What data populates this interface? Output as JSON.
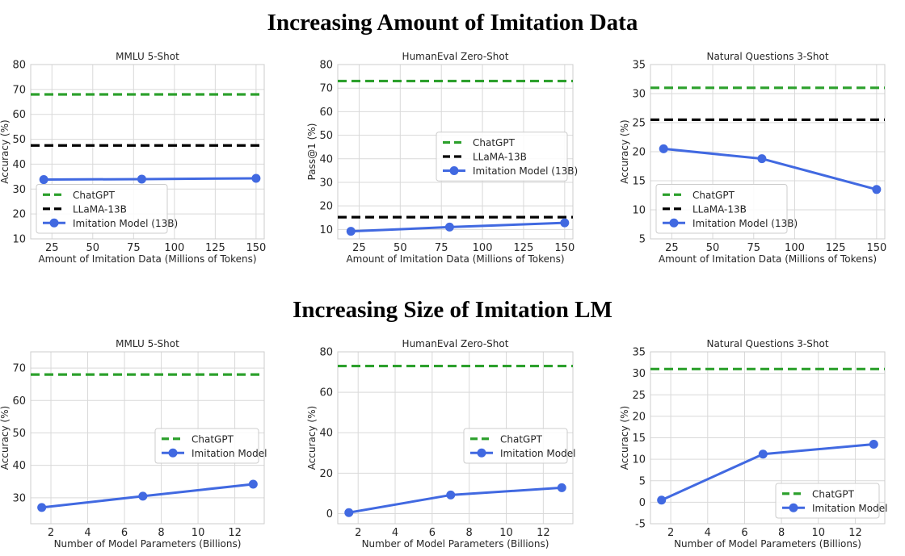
{
  "figure": {
    "row_titles": [
      "Increasing Amount of Imitation Data",
      "Increasing Size of Imitation LM"
    ]
  },
  "colors": {
    "chatgpt": "#2ca02c",
    "llama": "#000000",
    "imitation": "#4169e1",
    "grid": "#d9d9d9",
    "axes": "#cccccc"
  },
  "chart_data": [
    {
      "type": "line",
      "title": "MMLU 5-Shot",
      "xlabel": "Amount of Imitation Data (Millions of Tokens)",
      "ylabel": "Accuracy (%)",
      "xlim": [
        12,
        155
      ],
      "ylim": [
        10,
        80
      ],
      "xticks": [
        25,
        50,
        75,
        100,
        125,
        150
      ],
      "yticks": [
        10,
        20,
        30,
        40,
        50,
        60,
        70,
        80
      ],
      "hlines": [
        {
          "name": "ChatGPT",
          "y": 68,
          "color": "#2ca02c"
        },
        {
          "name": "LLaMA-13B",
          "y": 47.5,
          "color": "#000000"
        }
      ],
      "series": [
        {
          "name": "Imitation Model (13B)",
          "x": [
            20,
            80,
            150
          ],
          "y": [
            33.8,
            34.0,
            34.3
          ],
          "color": "#4169e1"
        }
      ],
      "legend": "lower-left"
    },
    {
      "type": "line",
      "title": "HumanEval Zero-Shot",
      "xlabel": "Amount of Imitation Data (Millions of Tokens)",
      "ylabel": "Pass@1 (%)",
      "xlim": [
        12,
        155
      ],
      "ylim": [
        6,
        80
      ],
      "xticks": [
        25,
        50,
        75,
        100,
        125,
        150
      ],
      "yticks": [
        10,
        20,
        30,
        40,
        50,
        60,
        70,
        80
      ],
      "hlines": [
        {
          "name": "ChatGPT",
          "y": 73,
          "color": "#2ca02c"
        },
        {
          "name": "LLaMA-13B",
          "y": 15.2,
          "color": "#000000"
        }
      ],
      "series": [
        {
          "name": "Imitation Model (13B)",
          "x": [
            20,
            80,
            150
          ],
          "y": [
            9.2,
            11.0,
            12.8
          ],
          "color": "#4169e1"
        }
      ],
      "legend": "center-right"
    },
    {
      "type": "line",
      "title": "Natural Questions 3-Shot",
      "xlabel": "Amount of Imitation Data (Millions of Tokens)",
      "ylabel": "Accuracy (%)",
      "xlim": [
        12,
        155
      ],
      "ylim": [
        5,
        35
      ],
      "xticks": [
        25,
        50,
        75,
        100,
        125,
        150
      ],
      "yticks": [
        5,
        10,
        15,
        20,
        25,
        30,
        35
      ],
      "hlines": [
        {
          "name": "ChatGPT",
          "y": 31,
          "color": "#2ca02c"
        },
        {
          "name": "LLaMA-13B",
          "y": 25.5,
          "color": "#000000"
        }
      ],
      "series": [
        {
          "name": "Imitation Model (13B)",
          "x": [
            20,
            80,
            150
          ],
          "y": [
            20.5,
            18.8,
            13.5
          ],
          "color": "#4169e1"
        }
      ],
      "legend": "lower-left"
    },
    {
      "type": "line",
      "title": "MMLU 5-Shot",
      "xlabel": "Number of Model Parameters (Billions)",
      "ylabel": "Accuracy (%)",
      "xlim": [
        0.9,
        13.6
      ],
      "ylim": [
        22,
        75
      ],
      "xticks": [
        2,
        4,
        6,
        8,
        10,
        12
      ],
      "yticks": [
        30,
        40,
        50,
        60,
        70
      ],
      "hlines": [
        {
          "name": "ChatGPT",
          "y": 68,
          "color": "#2ca02c"
        }
      ],
      "series": [
        {
          "name": "Imitation Model",
          "x": [
            1.5,
            7,
            13
          ],
          "y": [
            27.0,
            30.5,
            34.2
          ],
          "color": "#4169e1"
        }
      ],
      "legend": "center-right"
    },
    {
      "type": "line",
      "title": "HumanEval Zero-Shot",
      "xlabel": "Number of Model Parameters (Billions)",
      "ylabel": "Accuracy (%)",
      "xlim": [
        0.9,
        13.6
      ],
      "ylim": [
        -5,
        80
      ],
      "xticks": [
        2,
        4,
        6,
        8,
        10,
        12
      ],
      "yticks": [
        0,
        20,
        40,
        60,
        80
      ],
      "hlines": [
        {
          "name": "ChatGPT",
          "y": 73,
          "color": "#2ca02c"
        }
      ],
      "series": [
        {
          "name": "Imitation Model",
          "x": [
            1.5,
            7,
            13
          ],
          "y": [
            0.5,
            9.2,
            12.8
          ],
          "color": "#4169e1"
        }
      ],
      "legend": "center-right"
    },
    {
      "type": "line",
      "title": "Natural Questions 3-Shot",
      "xlabel": "Number of Model Parameters (Billions)",
      "ylabel": "Accuracy (%)",
      "xlim": [
        0.9,
        13.6
      ],
      "ylim": [
        -5,
        35
      ],
      "xticks": [
        2,
        4,
        6,
        8,
        10,
        12
      ],
      "yticks": [
        -5,
        0,
        5,
        10,
        15,
        20,
        25,
        30,
        35
      ],
      "hlines": [
        {
          "name": "ChatGPT",
          "y": 31,
          "color": "#2ca02c"
        }
      ],
      "series": [
        {
          "name": "Imitation Model",
          "x": [
            1.5,
            7,
            13
          ],
          "y": [
            0.5,
            11.2,
            13.5
          ],
          "color": "#4169e1"
        }
      ],
      "legend": "lower-right"
    }
  ]
}
